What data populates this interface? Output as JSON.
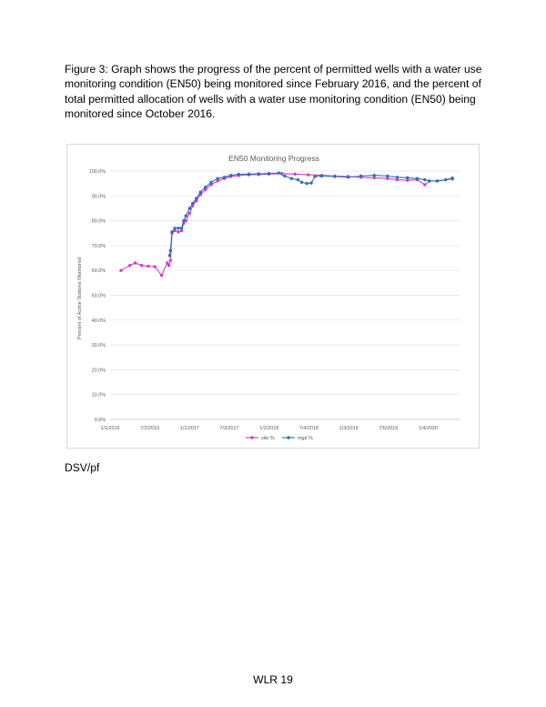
{
  "document": {
    "caption": "Figure 3: Graph shows the progress of the percent of permitted wells with a water use monitoring condition (EN50) being monitored since February 2016, and the percent of total permitted allocation of wells with a water use monitoring condition (EN50) being monitored since October 2016.",
    "signature": "DSV/pf",
    "footer": "WLR 19"
  },
  "chart_data": {
    "type": "line",
    "title": "EN50 Monitoring Progress",
    "xlabel": "",
    "ylabel": "Percent of Active Stations Monitored",
    "x_ticks": [
      "1/1/2016",
      "7/2/2016",
      "1/1/2017",
      "7/3/2017",
      "1/2/2018",
      "7/4/2018",
      "1/3/2019",
      "7/5/2019",
      "1/4/2020"
    ],
    "y_ticks": [
      "0.0%",
      "10.0%",
      "20.0%",
      "30.0%",
      "40.0%",
      "50.0%",
      "60.0%",
      "70.0%",
      "80.0%",
      "90.0%",
      "100.0%"
    ],
    "xlim": [
      "2016-01-01",
      "2020-06-01"
    ],
    "ylim": [
      0,
      100
    ],
    "grid": "horizontal",
    "legend_position": "bottom",
    "series": [
      {
        "name": "site %",
        "color": "#d43cc8",
        "points": [
          [
            "2016-02-20",
            60.0
          ],
          [
            "2016-04-01",
            62.0
          ],
          [
            "2016-04-25",
            63.0
          ],
          [
            "2016-05-25",
            62.0
          ],
          [
            "2016-06-25",
            61.7
          ],
          [
            "2016-07-25",
            61.5
          ],
          [
            "2016-08-25",
            58.0
          ],
          [
            "2016-09-20",
            63.0
          ],
          [
            "2016-09-28",
            62.0
          ],
          [
            "2016-10-05",
            64.0
          ],
          [
            "2016-10-12",
            75.0
          ],
          [
            "2016-10-25",
            76.0
          ],
          [
            "2016-11-10",
            75.5
          ],
          [
            "2016-11-25",
            76.0
          ],
          [
            "2016-12-05",
            79.0
          ],
          [
            "2016-12-15",
            80.0
          ],
          [
            "2017-01-01",
            83.0
          ],
          [
            "2017-01-15",
            86.0
          ],
          [
            "2017-02-01",
            88.0
          ],
          [
            "2017-02-20",
            90.5
          ],
          [
            "2017-03-15",
            92.5
          ],
          [
            "2017-04-10",
            94.5
          ],
          [
            "2017-05-10",
            96.0
          ],
          [
            "2017-06-10",
            97.0
          ],
          [
            "2017-07-10",
            97.8
          ],
          [
            "2017-08-15",
            98.2
          ],
          [
            "2017-10-01",
            98.5
          ],
          [
            "2017-11-15",
            98.6
          ],
          [
            "2018-01-01",
            98.8
          ],
          [
            "2018-03-01",
            99.0
          ],
          [
            "2018-05-01",
            98.8
          ],
          [
            "2018-07-01",
            98.5
          ],
          [
            "2018-09-01",
            98.3
          ],
          [
            "2018-11-01",
            98.0
          ],
          [
            "2019-01-01",
            97.8
          ],
          [
            "2019-03-01",
            97.5
          ],
          [
            "2019-05-01",
            97.3
          ],
          [
            "2019-07-01",
            97.0
          ],
          [
            "2019-08-15",
            96.5
          ],
          [
            "2019-10-01",
            96.3
          ],
          [
            "2019-11-15",
            96.5
          ],
          [
            "2019-12-20",
            94.5
          ],
          [
            "2020-01-10",
            96.0
          ],
          [
            "2020-02-15",
            96.0
          ],
          [
            "2020-03-25",
            96.5
          ],
          [
            "2020-04-25",
            96.8
          ]
        ]
      },
      {
        "name": "mgd %",
        "color": "#2e6fb5",
        "points": [
          [
            "2016-10-01",
            66.0
          ],
          [
            "2016-10-05",
            68.0
          ],
          [
            "2016-10-12",
            75.5
          ],
          [
            "2016-10-25",
            77.0
          ],
          [
            "2016-11-10",
            77.0
          ],
          [
            "2016-11-25",
            77.0
          ],
          [
            "2016-12-05",
            80.0
          ],
          [
            "2016-12-15",
            82.0
          ],
          [
            "2017-01-01",
            85.0
          ],
          [
            "2017-01-15",
            87.0
          ],
          [
            "2017-02-01",
            89.0
          ],
          [
            "2017-02-20",
            91.5
          ],
          [
            "2017-03-15",
            93.5
          ],
          [
            "2017-04-10",
            95.5
          ],
          [
            "2017-05-10",
            97.0
          ],
          [
            "2017-06-10",
            97.5
          ],
          [
            "2017-07-10",
            98.3
          ],
          [
            "2017-08-15",
            98.7
          ],
          [
            "2017-10-01",
            98.8
          ],
          [
            "2017-11-15",
            98.9
          ],
          [
            "2018-01-01",
            99.0
          ],
          [
            "2018-02-15",
            99.2
          ],
          [
            "2018-03-15",
            98.0
          ],
          [
            "2018-04-15",
            97.0
          ],
          [
            "2018-05-15",
            96.5
          ],
          [
            "2018-06-01",
            95.5
          ],
          [
            "2018-06-25",
            95.0
          ],
          [
            "2018-07-15",
            95.2
          ],
          [
            "2018-08-01",
            97.8
          ],
          [
            "2018-09-01",
            98.0
          ],
          [
            "2018-11-01",
            97.8
          ],
          [
            "2019-01-01",
            97.5
          ],
          [
            "2019-03-01",
            98.0
          ],
          [
            "2019-05-01",
            98.3
          ],
          [
            "2019-07-01",
            98.0
          ],
          [
            "2019-08-15",
            97.5
          ],
          [
            "2019-10-01",
            97.3
          ],
          [
            "2019-11-15",
            97.0
          ],
          [
            "2019-12-20",
            96.5
          ],
          [
            "2020-01-10",
            96.0
          ],
          [
            "2020-02-15",
            96.0
          ],
          [
            "2020-03-25",
            96.5
          ],
          [
            "2020-04-25",
            97.2
          ]
        ]
      }
    ]
  }
}
